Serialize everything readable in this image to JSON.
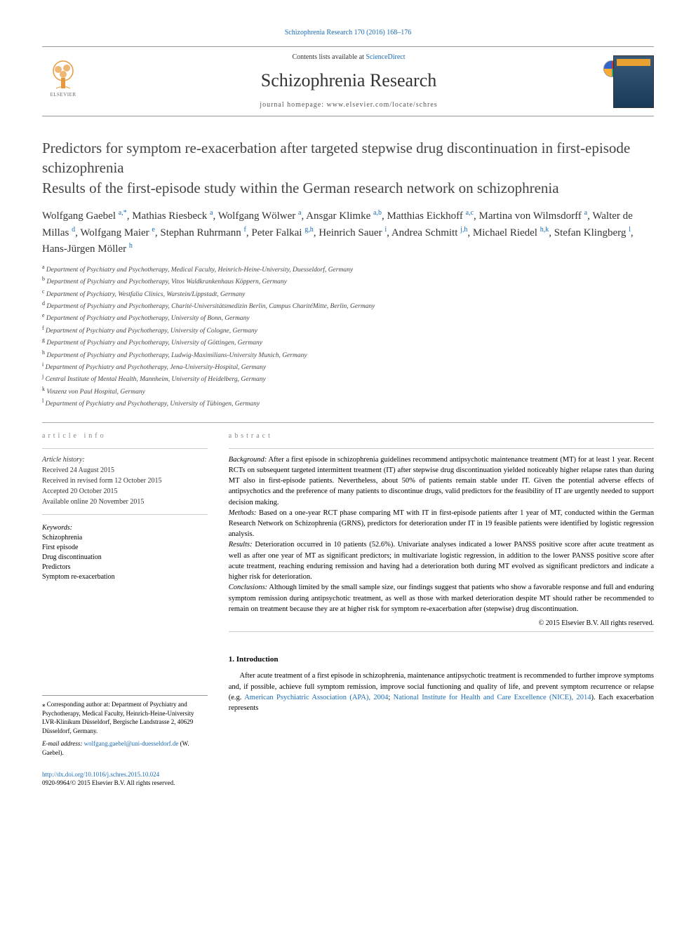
{
  "topLink": "Schizophrenia Research 170 (2016) 168–176",
  "header": {
    "contentsPrefix": "Contents lists available at ",
    "contentsLink": "ScienceDirect",
    "journalName": "Schizophrenia Research",
    "homepage": "journal homepage: www.elsevier.com/locate/schres",
    "publisherLogo": "ELSEVIER"
  },
  "crossmark": "CrossMark",
  "title": "Predictors for symptom re-exacerbation after targeted stepwise drug discontinuation in first-episode schizophrenia",
  "subtitle": "Results of the first-episode study within the German research network on schizophrenia",
  "authors": [
    {
      "name": "Wolfgang Gaebel",
      "aff": "a,*"
    },
    {
      "name": "Mathias Riesbeck",
      "aff": "a"
    },
    {
      "name": "Wolfgang Wölwer",
      "aff": "a"
    },
    {
      "name": "Ansgar Klimke",
      "aff": "a,b"
    },
    {
      "name": "Matthias Eickhoff",
      "aff": "a,c"
    },
    {
      "name": "Martina von Wilmsdorff",
      "aff": "a"
    },
    {
      "name": "Walter de Millas",
      "aff": "d"
    },
    {
      "name": "Wolfgang Maier",
      "aff": "e"
    },
    {
      "name": "Stephan Ruhrmann",
      "aff": "f"
    },
    {
      "name": "Peter Falkai",
      "aff": "g,h"
    },
    {
      "name": "Heinrich Sauer",
      "aff": "i"
    },
    {
      "name": "Andrea Schmitt",
      "aff": "j,h"
    },
    {
      "name": "Michael Riedel",
      "aff": "h,k"
    },
    {
      "name": "Stefan Klingberg",
      "aff": "l"
    },
    {
      "name": "Hans-Jürgen Möller",
      "aff": "h"
    }
  ],
  "affiliations": [
    {
      "key": "a",
      "text": "Department of Psychiatry and Psychotherapy, Medical Faculty, Heinrich-Heine-University, Duesseldorf, Germany"
    },
    {
      "key": "b",
      "text": "Department of Psychiatry and Psychotherapy, Vitos Waldkrankenhaus Köppern, Germany"
    },
    {
      "key": "c",
      "text": "Department of Psychiatry, Westfalia Clinics, Warstein/Lippstadt, Germany"
    },
    {
      "key": "d",
      "text": "Department of Psychiatry and Psychotherapy, Charité-Universitätsmedizin Berlin, Campus CharitéMitte, Berlin, Germany"
    },
    {
      "key": "e",
      "text": "Department of Psychiatry and Psychotherapy, University of Bonn, Germany"
    },
    {
      "key": "f",
      "text": "Department of Psychiatry and Psychotherapy, University of Cologne, Germany"
    },
    {
      "key": "g",
      "text": "Department of Psychiatry and Psychotherapy, University of Göttingen, Germany"
    },
    {
      "key": "h",
      "text": "Department of Psychiatry and Psychotherapy, Ludwig-Maximilians-University Munich, Germany"
    },
    {
      "key": "i",
      "text": "Department of Psychiatry and Psychotherapy, Jena-University-Hospital, Germany"
    },
    {
      "key": "j",
      "text": "Central Institute of Mental Health, Mannheim, University of Heidelberg, Germany"
    },
    {
      "key": "k",
      "text": "Vinzenz von Paul Hospital, Germany"
    },
    {
      "key": "l",
      "text": "Department of Psychiatry and Psychotherapy, University of Tübingen, Germany"
    }
  ],
  "articleInfo": {
    "heading": "article info",
    "historyLabel": "Article history:",
    "received": "Received 24 August 2015",
    "revised": "Received in revised form 12 October 2015",
    "accepted": "Accepted 20 October 2015",
    "online": "Available online 20 November 2015",
    "keywordsLabel": "Keywords:",
    "keywords": [
      "Schizophrenia",
      "First episode",
      "Drug discontinuation",
      "Predictors",
      "Symptom re-exacerbation"
    ]
  },
  "abstract": {
    "heading": "abstract",
    "background": "Background: After a first episode in schizophrenia guidelines recommend antipsychotic maintenance treatment (MT) for at least 1 year. Recent RCTs on subsequent targeted intermittent treatment (IT) after stepwise drug discontinuation yielded noticeably higher relapse rates than during MT also in first-episode patients. Nevertheless, about 50% of patients remain stable under IT. Given the potential adverse effects of antipsychotics and the preference of many patients to discontinue drugs, valid predictors for the feasibility of IT are urgently needed to support decision making.",
    "methods": "Methods: Based on a one-year RCT phase comparing MT with IT in first-episode patients after 1 year of MT, conducted within the German Research Network on Schizophrenia (GRNS), predictors for deterioration under IT in 19 feasible patients were identified by logistic regression analysis.",
    "results": "Results: Deterioration occurred in 10 patients (52.6%). Univariate analyses indicated a lower PANSS positive score after acute treatment as well as after one year of MT as significant predictors; in multivariate logistic regression, in addition to the lower PANSS positive score after acute treatment, reaching enduring remission and having had a deterioration both during MT evolved as significant predictors and indicate a higher risk for deterioration.",
    "conclusions": "Conclusions: Although limited by the small sample size, our findings suggest that patients who show a favorable response and full and enduring symptom remission during antipsychotic treatment, as well as those with marked deterioration despite MT should rather be recommended to remain on treatment because they are at higher risk for symptom re-exacerbation after (stepwise) drug discontinuation.",
    "copyright": "© 2015 Elsevier B.V. All rights reserved."
  },
  "intro": {
    "heading": "1. Introduction",
    "text": "After acute treatment of a first episode in schizophrenia, maintenance antipsychotic treatment is recommended to further improve symptoms and, if possible, achieve full symptom remission, improve social functioning and quality of life, and prevent symptom recurrence or relapse (e.g. ",
    "link1": "American Psychiatric Association (APA), 2004",
    "sep": "; ",
    "link2": "National Institute for Health and Care Excellence (NICE), 2014",
    "textEnd": "). Each exacerbation represents"
  },
  "corresponding": {
    "star": "⁎",
    "text": " Corresponding author at: Department of Psychiatry and Psychotherapy, Medical Faculty, Heinrich-Heine-University LVR-Klinikum Düsseldorf, Bergische Landstrasse 2, 40629 Düsseldorf, Germany.",
    "emailLabel": "E-mail address: ",
    "email": "wolfgang.gaebel@uni-duesseldorf.de",
    "emailSuffix": " (W. Gaebel)."
  },
  "doi": {
    "link": "http://dx.doi.org/10.1016/j.schres.2015.10.024",
    "issn": "0920-9964/© 2015 Elsevier B.V. All rights reserved."
  },
  "colors": {
    "link": "#1a6bb5",
    "text": "#333333",
    "border": "#999999"
  }
}
